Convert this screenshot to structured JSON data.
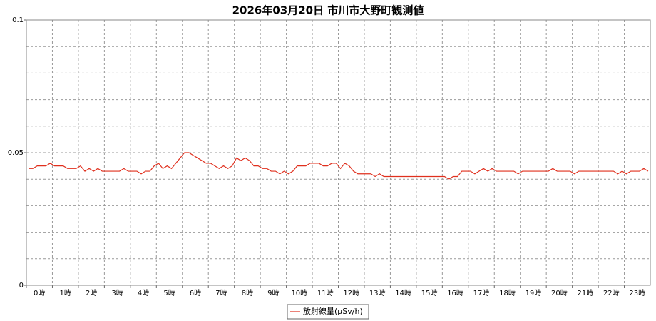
{
  "chart_data": {
    "type": "line",
    "title": "2026年03月20日 市川市大野町観測値",
    "categories": [
      null,
      null,
      null,
      "0時",
      null,
      null,
      null,
      null,
      null,
      "1時",
      null,
      null,
      null,
      null,
      null,
      "2時",
      null,
      null,
      null,
      null,
      null,
      "3時",
      null,
      null,
      null,
      null,
      null,
      "4時",
      null,
      null,
      null,
      null,
      null,
      "5時",
      null,
      null,
      null,
      null,
      null,
      "6時",
      null,
      null,
      null,
      null,
      null,
      "7時",
      null,
      null,
      null,
      null,
      null,
      "8時",
      null,
      null,
      null,
      null,
      null,
      "9時",
      null,
      null,
      null,
      null,
      null,
      "10時",
      null,
      null,
      null,
      null,
      null,
      "11時",
      null,
      null,
      null,
      null,
      null,
      "12時",
      null,
      null,
      null,
      null,
      null,
      "13時",
      null,
      null,
      null,
      null,
      null,
      "14時",
      null,
      null,
      null,
      null,
      null,
      "15時",
      null,
      null,
      null,
      null,
      null,
      "16時",
      null,
      null,
      null,
      null,
      null,
      "17時",
      null,
      null,
      null,
      null,
      null,
      "18時",
      null,
      null,
      null,
      null,
      null,
      "19時",
      null,
      null,
      null,
      null,
      null,
      "20時",
      null,
      null,
      null,
      null,
      null,
      "21時",
      null,
      null,
      null,
      null,
      null,
      "22時",
      null,
      null,
      null,
      null,
      null,
      "23時",
      null,
      null
    ],
    "series": [
      {
        "name": "放射線量(μSv/h)",
        "color": "#e0301e",
        "values": [
          0.044,
          0.044,
          0.045,
          0.045,
          0.045,
          0.046,
          0.045,
          0.045,
          0.045,
          0.044,
          0.044,
          0.044,
          0.045,
          0.043,
          0.044,
          0.043,
          0.044,
          0.043,
          0.043,
          0.043,
          0.043,
          0.043,
          0.044,
          0.043,
          0.043,
          0.043,
          0.042,
          0.043,
          0.043,
          0.045,
          0.046,
          0.044,
          0.045,
          0.044,
          0.046,
          0.048,
          0.05,
          0.05,
          0.049,
          0.048,
          0.047,
          0.046,
          0.046,
          0.045,
          0.044,
          0.045,
          0.044,
          0.045,
          0.048,
          0.047,
          0.048,
          0.047,
          0.045,
          0.045,
          0.044,
          0.044,
          0.043,
          0.043,
          0.042,
          0.043,
          0.042,
          0.043,
          0.045,
          0.045,
          0.045,
          0.046,
          0.046,
          0.046,
          0.045,
          0.045,
          0.046,
          0.046,
          0.044,
          0.046,
          0.045,
          0.043,
          0.042,
          0.042,
          0.042,
          0.042,
          0.041,
          0.042,
          0.041,
          0.041,
          0.041,
          0.041,
          0.041,
          0.041,
          0.041,
          0.041,
          0.041,
          0.041,
          0.041,
          0.041,
          0.041,
          0.041,
          0.041,
          0.04,
          0.041,
          0.041,
          0.043,
          0.043,
          0.043,
          0.042,
          0.043,
          0.044,
          0.043,
          0.044,
          0.043,
          0.043,
          0.043,
          0.043,
          0.043,
          0.042,
          0.043,
          0.043,
          0.043,
          0.043,
          0.043,
          0.043,
          0.043,
          0.044,
          0.043,
          0.043,
          0.043,
          0.043,
          0.042,
          0.043,
          0.043,
          0.043,
          0.043,
          0.043,
          0.043,
          0.043,
          0.043,
          0.043,
          0.042,
          0.043,
          0.042,
          0.043,
          0.043,
          0.043,
          0.044,
          0.043
        ]
      }
    ],
    "ylim": [
      0,
      0.1
    ],
    "yticks": [
      0,
      0.05,
      0.1
    ],
    "ygrid": [
      0,
      0.01,
      0.02,
      0.03,
      0.04,
      0.05,
      0.06,
      0.07,
      0.08,
      0.09,
      0.1
    ],
    "grid": true,
    "legend": "bottom"
  }
}
